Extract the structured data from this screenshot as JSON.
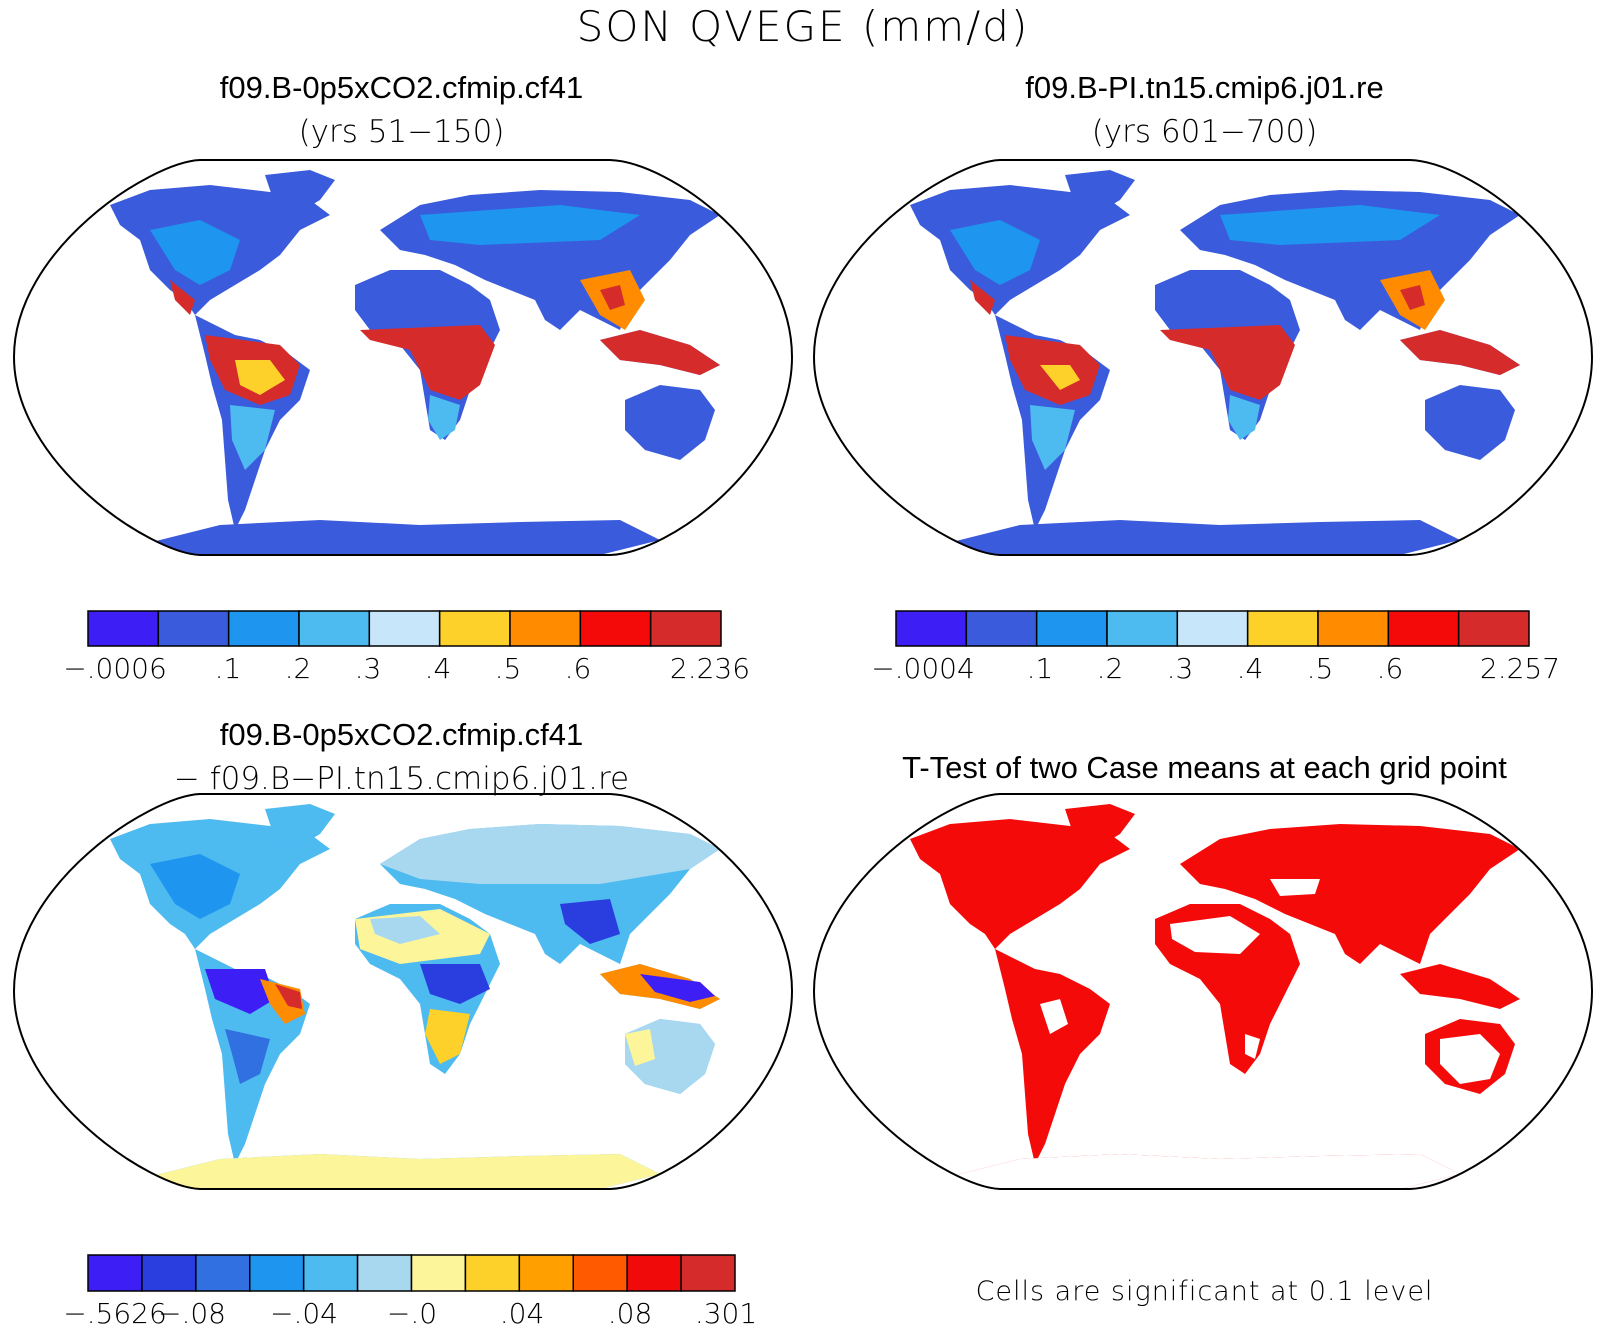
{
  "title": "SON QVEGE (mm/d)",
  "panels": {
    "top_left": {
      "title": "f09.B-0p5xCO2.cfmip.cf41",
      "subtitle": "(yrs 51−150)",
      "fill": {
        "land": "#3a5bdc",
        "tropics": "#d52b2b",
        "subtropics": "#4dbaf0",
        "mid": "#1e96f0",
        "warm": "#fdd02a",
        "hot": "#ff8c00"
      },
      "colorbar": {
        "colors": [
          "#3d1ef5",
          "#3a5bdc",
          "#1e96f0",
          "#4dbaf0",
          "#c8e6fa",
          "#fdd02a",
          "#ff8c00",
          "#f50a0a",
          "#d52b2b"
        ],
        "tick_labels": [
          "−.0006",
          ".1",
          ".2",
          ".3",
          ".4",
          ".5",
          ".6",
          "2.236"
        ]
      }
    },
    "top_right": {
      "title": "f09.B-PI.tn15.cmip6.j01.re",
      "subtitle": "(yrs 601−700)",
      "colorbar": {
        "colors": [
          "#3d1ef5",
          "#3a5bdc",
          "#1e96f0",
          "#4dbaf0",
          "#c8e6fa",
          "#fdd02a",
          "#ff8c00",
          "#f50a0a",
          "#d52b2b"
        ],
        "tick_labels": [
          "−.0004",
          ".1",
          ".2",
          ".3",
          ".4",
          ".5",
          ".6",
          "2.257"
        ]
      }
    },
    "bottom_left": {
      "title": "f09.B-0p5xCO2.cfmip.cf41",
      "subtitle": "− f09.B−PI.tn15.cmip6.j01.re",
      "colorbar": {
        "colors": [
          "#3d1ef5",
          "#2a3ee0",
          "#3070e0",
          "#1e96f0",
          "#4dbaf0",
          "#a8d8f0",
          "#fdf59a",
          "#fdd02a",
          "#ffa000",
          "#ff5a00",
          "#f00a0a",
          "#d52b2b"
        ],
        "tick_labels": [
          "−.5626",
          "−.08",
          "−.04",
          "−.0",
          ".04",
          ".08",
          ".301"
        ]
      }
    },
    "bottom_right": {
      "title": "T-Test of two Case means at each grid point",
      "note": "Cells are significant at 0.1 level",
      "significant_color": "#f50a0a"
    }
  }
}
